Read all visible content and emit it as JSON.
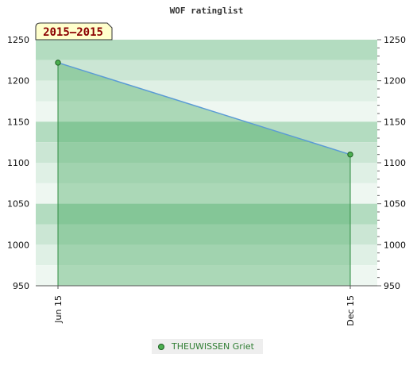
{
  "chart_data": {
    "type": "area",
    "title": "WOF ratinglist",
    "period_label": "2015–2015",
    "categories": [
      "Jun 15",
      "Dec 15"
    ],
    "series": [
      {
        "name": "THEUWISSEN Griet",
        "values": [
          1222,
          1110
        ]
      }
    ],
    "ylim": [
      950,
      1250
    ],
    "yticks": [
      950,
      1000,
      1050,
      1100,
      1150,
      1200,
      1250
    ],
    "xlabel": "",
    "ylabel": "",
    "grid": true,
    "legend": "bottom-center",
    "colors": {
      "line": "#5b9bd5",
      "area": "#2e9e4a",
      "marker": "#4caf50",
      "band_dark": "#b3dcc0",
      "band_mid": "#cbe6d4",
      "band_light": "#dff0e5",
      "band_pale": "#eef7f1",
      "period_bg": "#ffffcc"
    }
  }
}
